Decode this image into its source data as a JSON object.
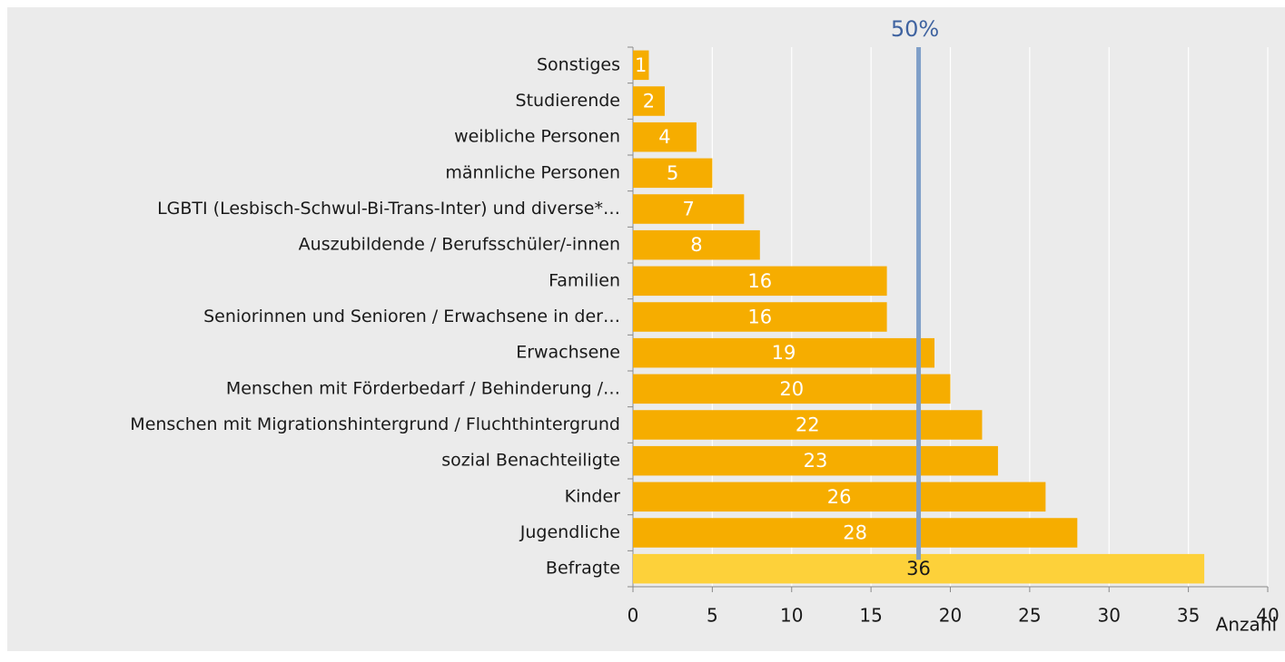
{
  "chart_data": {
    "type": "bar",
    "orientation": "horizontal",
    "categories": [
      "Sonstiges",
      "Studierende",
      "weibliche Personen",
      "männliche Personen",
      "LGBTI (Lesbisch-Schwul-Bi-Trans-Inter) und diverse*…",
      "Auszubildende / Berufsschüler/-innen",
      "Familien",
      "Seniorinnen und Senioren / Erwachsene in der…",
      "Erwachsene",
      "Menschen mit Förderbedarf / Behinderung /…",
      "Menschen mit Migrationshintergrund / Fluchthintergrund",
      "sozial Benachteiligte",
      "Kinder",
      "Jugendliche",
      "Befragte"
    ],
    "values": [
      1,
      2,
      4,
      5,
      7,
      8,
      16,
      16,
      19,
      20,
      22,
      23,
      26,
      28,
      36
    ],
    "colors": [
      "#f6ad00",
      "#f6ad00",
      "#f6ad00",
      "#f6ad00",
      "#f6ad00",
      "#f6ad00",
      "#f6ad00",
      "#f6ad00",
      "#f6ad00",
      "#f6ad00",
      "#f6ad00",
      "#f6ad00",
      "#f6ad00",
      "#f6ad00",
      "#fdd13a"
    ],
    "xlim": [
      0,
      40
    ],
    "xticks": [
      0,
      5,
      10,
      15,
      20,
      25,
      30,
      35,
      40
    ],
    "grid": true,
    "x_label": "Anzahl",
    "reference_line": {
      "value": 18,
      "label": "50%",
      "color": "#7f9fc8"
    }
  }
}
